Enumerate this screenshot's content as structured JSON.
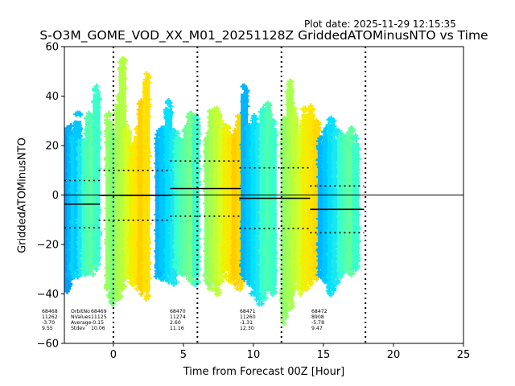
{
  "plot_date": "Plot date: 2025-11-29 12:15:35",
  "chart_data": {
    "type": "scatter",
    "title": "S-O3M_GOME_VOD_XX_M01_20251128Z GriddedATOMinusNTO vs Time",
    "xlabel": "Time from Forecast 00Z [Hour]",
    "ylabel": "GriddedATOMinusNTO",
    "xlim": [
      -3.5,
      25
    ],
    "ylim": [
      -60,
      60
    ],
    "xticks": [
      0,
      5,
      10,
      15,
      20,
      25
    ],
    "yticks": [
      -60,
      -40,
      -20,
      0,
      20,
      40,
      60
    ],
    "zero_line": 0,
    "forecast_lines": [
      0,
      6,
      12,
      18
    ],
    "orbits": [
      {
        "orbit": "68468",
        "nvalues": "11262",
        "average": "-3.70",
        "stdev": "9.55",
        "mean": -3.7,
        "sd": 9.55,
        "x_range": [
          -3.5,
          -0.95
        ]
      },
      {
        "orbit": "68469",
        "nvalues": "11125",
        "average": "-0.15",
        "stdev": "10.06",
        "mean": -0.15,
        "sd": 10.06,
        "x_range": [
          -1.05,
          4.15
        ]
      },
      {
        "orbit": "68470",
        "nvalues": "11274",
        "average": "2.60",
        "stdev": "11.16",
        "mean": 2.6,
        "sd": 11.16,
        "x_range": [
          4.05,
          9.1
        ]
      },
      {
        "orbit": "68471",
        "nvalues": "11260",
        "average": "-1.31",
        "stdev": "12.30",
        "mean": -1.31,
        "sd": 12.3,
        "x_range": [
          9.0,
          14.05
        ]
      },
      {
        "orbit": "68472",
        "nvalues": "8908",
        "average": "-5.78",
        "stdev": "9.47",
        "mean": -5.78,
        "sd": 9.47,
        "x_range": [
          14.05,
          17.9
        ]
      }
    ],
    "stat_labels": {
      "orbit": "OrbitNo",
      "nvalues": "NValues",
      "average": "Average",
      "stdev": "Stdev"
    },
    "scan_strips": [
      {
        "x": -3.3,
        "min": -39,
        "max": 27,
        "color": "#009cff"
      },
      {
        "x": -3.05,
        "min": -34,
        "max": 28,
        "color": "#00b4ff"
      },
      {
        "x": -2.8,
        "min": -33,
        "max": 26,
        "color": "#00d6ff"
      },
      {
        "x": -2.55,
        "min": -33,
        "max": 33,
        "color": "#00c8ff"
      },
      {
        "x": -2.3,
        "min": -32,
        "max": 22,
        "color": "#1ee6f0"
      },
      {
        "x": -2.0,
        "min": -32,
        "max": 25,
        "color": "#3affc8"
      },
      {
        "x": -1.75,
        "min": -31,
        "max": 33,
        "color": "#50ffb0"
      },
      {
        "x": -1.45,
        "min": -32,
        "max": 32,
        "color": "#62ffa0"
      },
      {
        "x": -1.2,
        "min": -30,
        "max": 44,
        "color": "#3affc8"
      },
      {
        "x": -0.3,
        "min": -41,
        "max": 33,
        "color": "#9aff60"
      },
      {
        "x": 0.0,
        "min": -44,
        "max": 25,
        "color": "#78ff80"
      },
      {
        "x": 0.35,
        "min": -42,
        "max": 40,
        "color": "#a8ff50"
      },
      {
        "x": 0.65,
        "min": -38,
        "max": 55,
        "color": "#b4ff44"
      },
      {
        "x": 1.0,
        "min": -33,
        "max": 28,
        "color": "#d6ff26"
      },
      {
        "x": 1.35,
        "min": -36,
        "max": 20,
        "color": "#f0f000"
      },
      {
        "x": 1.7,
        "min": -38,
        "max": 27,
        "color": "#ffe600"
      },
      {
        "x": 2.0,
        "min": -40,
        "max": 38,
        "color": "#ffd000"
      },
      {
        "x": 2.35,
        "min": -42,
        "max": 49,
        "color": "#ffe000"
      },
      {
        "x": 3.25,
        "min": -33,
        "max": 26,
        "color": "#00b4ff"
      },
      {
        "x": 3.55,
        "min": -34,
        "max": 27,
        "color": "#00c8ff"
      },
      {
        "x": 3.95,
        "min": -35,
        "max": 38,
        "color": "#00e0ff"
      },
      {
        "x": 4.3,
        "min": -36,
        "max": 26,
        "color": "#1ee6f0"
      },
      {
        "x": 4.6,
        "min": -30,
        "max": 25,
        "color": "#36ffd0"
      },
      {
        "x": 4.9,
        "min": -32,
        "max": 22,
        "color": "#50ffb0"
      },
      {
        "x": 5.25,
        "min": -32,
        "max": 28,
        "color": "#62ffa0"
      },
      {
        "x": 5.55,
        "min": -35,
        "max": 33,
        "color": "#78ff88"
      },
      {
        "x": 5.9,
        "min": -36,
        "max": 32,
        "color": "#3affc8"
      },
      {
        "x": 6.75,
        "min": -36,
        "max": 25,
        "color": "#90ff68"
      },
      {
        "x": 7.05,
        "min": -38,
        "max": 34,
        "color": "#a8ff50"
      },
      {
        "x": 7.4,
        "min": -40,
        "max": 35,
        "color": "#c0ff38"
      },
      {
        "x": 7.7,
        "min": -35,
        "max": 30,
        "color": "#d6ff26"
      },
      {
        "x": 8.05,
        "min": -33,
        "max": 28,
        "color": "#f0f000"
      },
      {
        "x": 8.4,
        "min": -35,
        "max": 24,
        "color": "#ffe600"
      },
      {
        "x": 8.7,
        "min": -36,
        "max": 26,
        "color": "#ffcc00"
      },
      {
        "x": 9.05,
        "min": -38,
        "max": 32,
        "color": "#ffd800"
      },
      {
        "x": 9.35,
        "min": -34,
        "max": 44,
        "color": "#00b4ff"
      },
      {
        "x": 9.7,
        "min": -36,
        "max": 28,
        "color": "#00c8ff"
      },
      {
        "x": 10.05,
        "min": -40,
        "max": 32,
        "color": "#00e0ff"
      },
      {
        "x": 10.4,
        "min": -44,
        "max": 28,
        "color": "#1ee6f0"
      },
      {
        "x": 10.7,
        "min": -42,
        "max": 35,
        "color": "#36ffd0"
      },
      {
        "x": 11.05,
        "min": -38,
        "max": 37,
        "color": "#50ffb0"
      },
      {
        "x": 11.4,
        "min": -40,
        "max": 30,
        "color": "#3affc8"
      },
      {
        "x": 12.2,
        "min": -52,
        "max": 31,
        "color": "#90ff68"
      },
      {
        "x": 12.6,
        "min": -46,
        "max": 46,
        "color": "#a8ff50"
      },
      {
        "x": 12.95,
        "min": -38,
        "max": 35,
        "color": "#c0ff38"
      },
      {
        "x": 13.35,
        "min": -40,
        "max": 28,
        "color": "#d6ff26"
      },
      {
        "x": 13.7,
        "min": -38,
        "max": 35,
        "color": "#f0f000"
      },
      {
        "x": 14.1,
        "min": -36,
        "max": 36,
        "color": "#ffe600"
      },
      {
        "x": 14.5,
        "min": -34,
        "max": 30,
        "color": "#ffd800"
      },
      {
        "x": 14.85,
        "min": -33,
        "max": 23,
        "color": "#00b4ff"
      },
      {
        "x": 15.2,
        "min": -35,
        "max": 27,
        "color": "#00c8ff"
      },
      {
        "x": 15.55,
        "min": -40,
        "max": 31,
        "color": "#00e0ff"
      },
      {
        "x": 15.9,
        "min": -36,
        "max": 26,
        "color": "#1ee6f0"
      },
      {
        "x": 16.25,
        "min": -33,
        "max": 25,
        "color": "#36ffd0"
      },
      {
        "x": 16.6,
        "min": -30,
        "max": 24,
        "color": "#50ffb0"
      },
      {
        "x": 16.95,
        "min": -32,
        "max": 27,
        "color": "#62ffa0"
      },
      {
        "x": 17.3,
        "min": -30,
        "max": 24,
        "color": "#3affc8"
      }
    ],
    "colors": {
      "axis": "#000000",
      "mean_line": "#000000",
      "zero_line": "#000000",
      "forecast_line": "#000000"
    }
  }
}
